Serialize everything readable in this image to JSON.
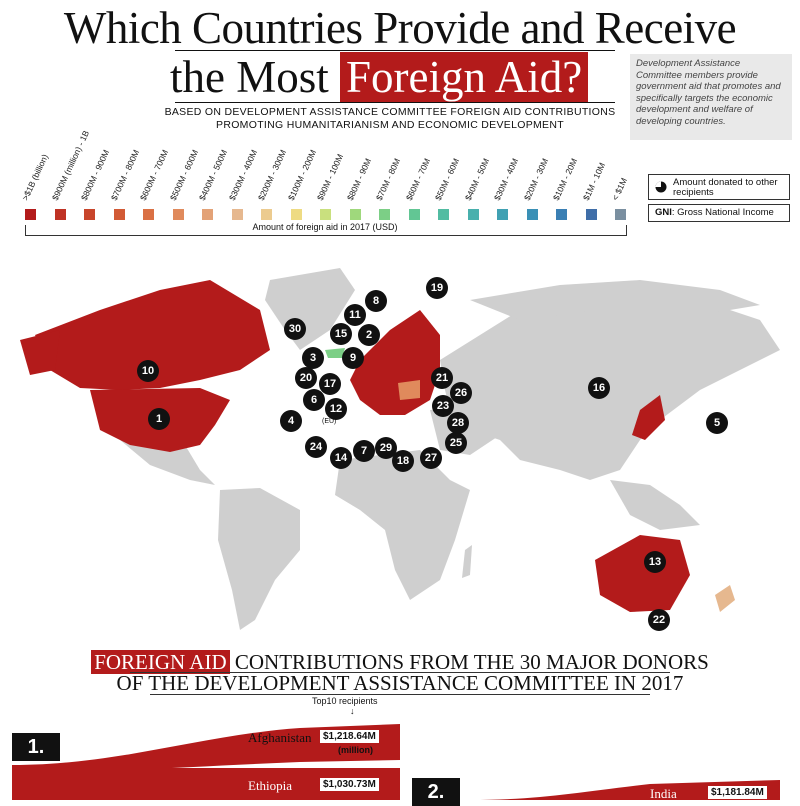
{
  "title": {
    "line1": "Which Countries Provide and Receive",
    "line2_pre": "the Most",
    "line2_highlight": "Foreign Aid?"
  },
  "subtitle": "BASED ON DEVELOPMENT ASSISTANCE COMMITTEE FOREIGN AID CONTRIBUTIONS PROMOTING HUMANITARIANISM AND ECONOMIC DEVELOPMENT",
  "dac_note": "Development Assistance Committee members provide government aid that promotes and specifically targets the economic development and welfare of developing countries.",
  "legend": {
    "axis_label": "Amount of foreign aid in 2017 (USD)",
    "bins": [
      {
        "label": ">$1B (billion)",
        "color": "#b31b1b"
      },
      {
        "label": "$900M (million) - 1B",
        "color": "#bf3224"
      },
      {
        "label": "$800M - 900M",
        "color": "#c8452b"
      },
      {
        "label": "$700M - 800M",
        "color": "#d25a35"
      },
      {
        "label": "$600M - 700M",
        "color": "#da7044"
      },
      {
        "label": "$500M - 600M",
        "color": "#e08a5c"
      },
      {
        "label": "$400M - 500M",
        "color": "#e3a277"
      },
      {
        "label": "$300M - 400M",
        "color": "#e6b88f"
      },
      {
        "label": "$200M - 300M",
        "color": "#eccb8f"
      },
      {
        "label": "$100M - 200M",
        "color": "#eedb83"
      },
      {
        "label": "$90M - 100M",
        "color": "#c9e07e"
      },
      {
        "label": "$80M - 90M",
        "color": "#9fd87c"
      },
      {
        "label": "$70M - 80M",
        "color": "#7ccf86"
      },
      {
        "label": "$60M - 70M",
        "color": "#62c694"
      },
      {
        "label": "$50M - 60M",
        "color": "#52bca2"
      },
      {
        "label": "$40M - 50M",
        "color": "#48b0ad"
      },
      {
        "label": "$30M - 40M",
        "color": "#40a1b3"
      },
      {
        "label": "$20M - 30M",
        "color": "#3a90b6"
      },
      {
        "label": "$10M - 20M",
        "color": "#3a7fb4"
      },
      {
        "label": "$1M - 10M",
        "color": "#3f6ea8"
      },
      {
        "label": "< $1M",
        "color": "#7a8fa0"
      }
    ]
  },
  "keys": {
    "donated": "Amount donated to other recipients",
    "gni_abbr": "GNI",
    "gni_text": ": Gross National Income"
  },
  "map": {
    "eu_label": "(EU)",
    "land_color": "#cfcfcf",
    "donor_color": "#b31b1b",
    "badges": [
      "1",
      "2",
      "3",
      "4",
      "5",
      "6",
      "7",
      "8",
      "9",
      "10",
      "11",
      "12",
      "13",
      "14",
      "15",
      "16",
      "17",
      "18",
      "19",
      "20",
      "21",
      "22",
      "23",
      "24",
      "25",
      "26",
      "27",
      "28",
      "29",
      "30"
    ]
  },
  "section": {
    "title_highlight": "FOREIGN AID",
    "title_rest": "CONTRIBUTIONS FROM THE 30 MAJOR DONORS",
    "title_line2": "OF THE DEVELOPMENT ASSISTANCE COMMITTEE IN 2017",
    "top10_label": "Top10 recipients",
    "top10_arrow": "↓",
    "ranks": [
      "1.",
      "2."
    ],
    "recipients": [
      {
        "name": "Afghanistan",
        "value": "$1,218.64M",
        "unit": "(million)"
      },
      {
        "name": "Ethiopia",
        "value": "$1,030.73M"
      },
      {
        "name": "India",
        "value": "$1,181.84M"
      }
    ]
  },
  "chart_data": {
    "type": "table",
    "title": "Which Countries Provide and Receive the Most Foreign Aid?",
    "legend_bins": [
      ">$1B (billion)",
      "$900M (million) - 1B",
      "$800M - 900M",
      "$700M - 800M",
      "$600M - 700M",
      "$500M - 600M",
      "$400M - 500M",
      "$300M - 400M",
      "$200M - 300M",
      "$100M - 200M",
      "$90M - 100M",
      "$80M - 90M",
      "$70M - 80M",
      "$60M - 70M",
      "$50M - 60M",
      "$40M - 50M",
      "$30M - 40M",
      "$20M - 30M",
      "$10M - 20M",
      "$1M - 10M",
      "< $1M"
    ],
    "visible_recipients": [
      {
        "donor_rank": 1,
        "recipient": "Afghanistan",
        "value_million_usd": 1218.64
      },
      {
        "donor_rank": 1,
        "recipient": "Ethiopia",
        "value_million_usd": 1030.73
      },
      {
        "donor_rank": 2,
        "recipient": "India",
        "value_million_usd": 1181.84
      }
    ]
  }
}
